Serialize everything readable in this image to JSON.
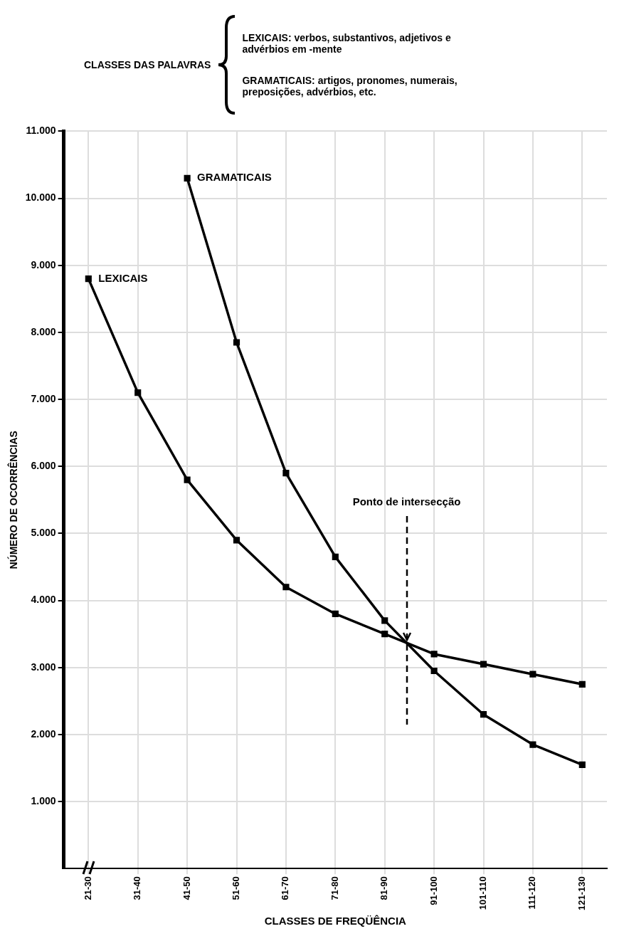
{
  "chart_data": {
    "type": "line",
    "xlabel": "CLASSES DE FREQÜÊNCIA",
    "ylabel": "NÚMERO DE OCORRÊNCIAS",
    "annotations": [
      "CLASSES DAS PALAVRAS",
      "LEXICAIS: verbos, substantivos, adjetivos e advérbios em -mente",
      "GRAMATICAIS: artigos, pronomes, numerais, preposições, advérbios, etc.",
      "Ponto de intersecção"
    ],
    "categories": [
      "21-30",
      "31-40",
      "41-50",
      "51-60",
      "61-70",
      "71-80",
      "81-90",
      "91-100",
      "101-110",
      "111-120",
      "121-130"
    ],
    "series": [
      {
        "name": "LEXICAIS",
        "color": "#000000",
        "values": [
          8800,
          7100,
          5800,
          4900,
          4200,
          3800,
          3500,
          3200,
          3050,
          2900,
          2750
        ]
      },
      {
        "name": "GRAMATICAIS",
        "color": "#000000",
        "values": [
          null,
          null,
          10300,
          7850,
          5900,
          4650,
          3700,
          2950,
          2300,
          1850,
          1550
        ]
      }
    ],
    "ylim": [
      0,
      11000
    ],
    "yticks": [
      {
        "value": 1000,
        "label": "1.000"
      },
      {
        "value": 2000,
        "label": "2.000"
      },
      {
        "value": 3000,
        "label": "3.000"
      },
      {
        "value": 4000,
        "label": "4.000"
      },
      {
        "value": 5000,
        "label": "5.000"
      },
      {
        "value": 6000,
        "label": "6.000"
      },
      {
        "value": 7000,
        "label": "7.000"
      },
      {
        "value": 8000,
        "label": "8.000"
      },
      {
        "value": 9000,
        "label": "9.000"
      },
      {
        "value": 10000,
        "label": "10.000"
      },
      {
        "value": 11000,
        "label": "11.000"
      }
    ],
    "grid": true,
    "legend": false,
    "marker": "square",
    "line_style": "solid"
  }
}
